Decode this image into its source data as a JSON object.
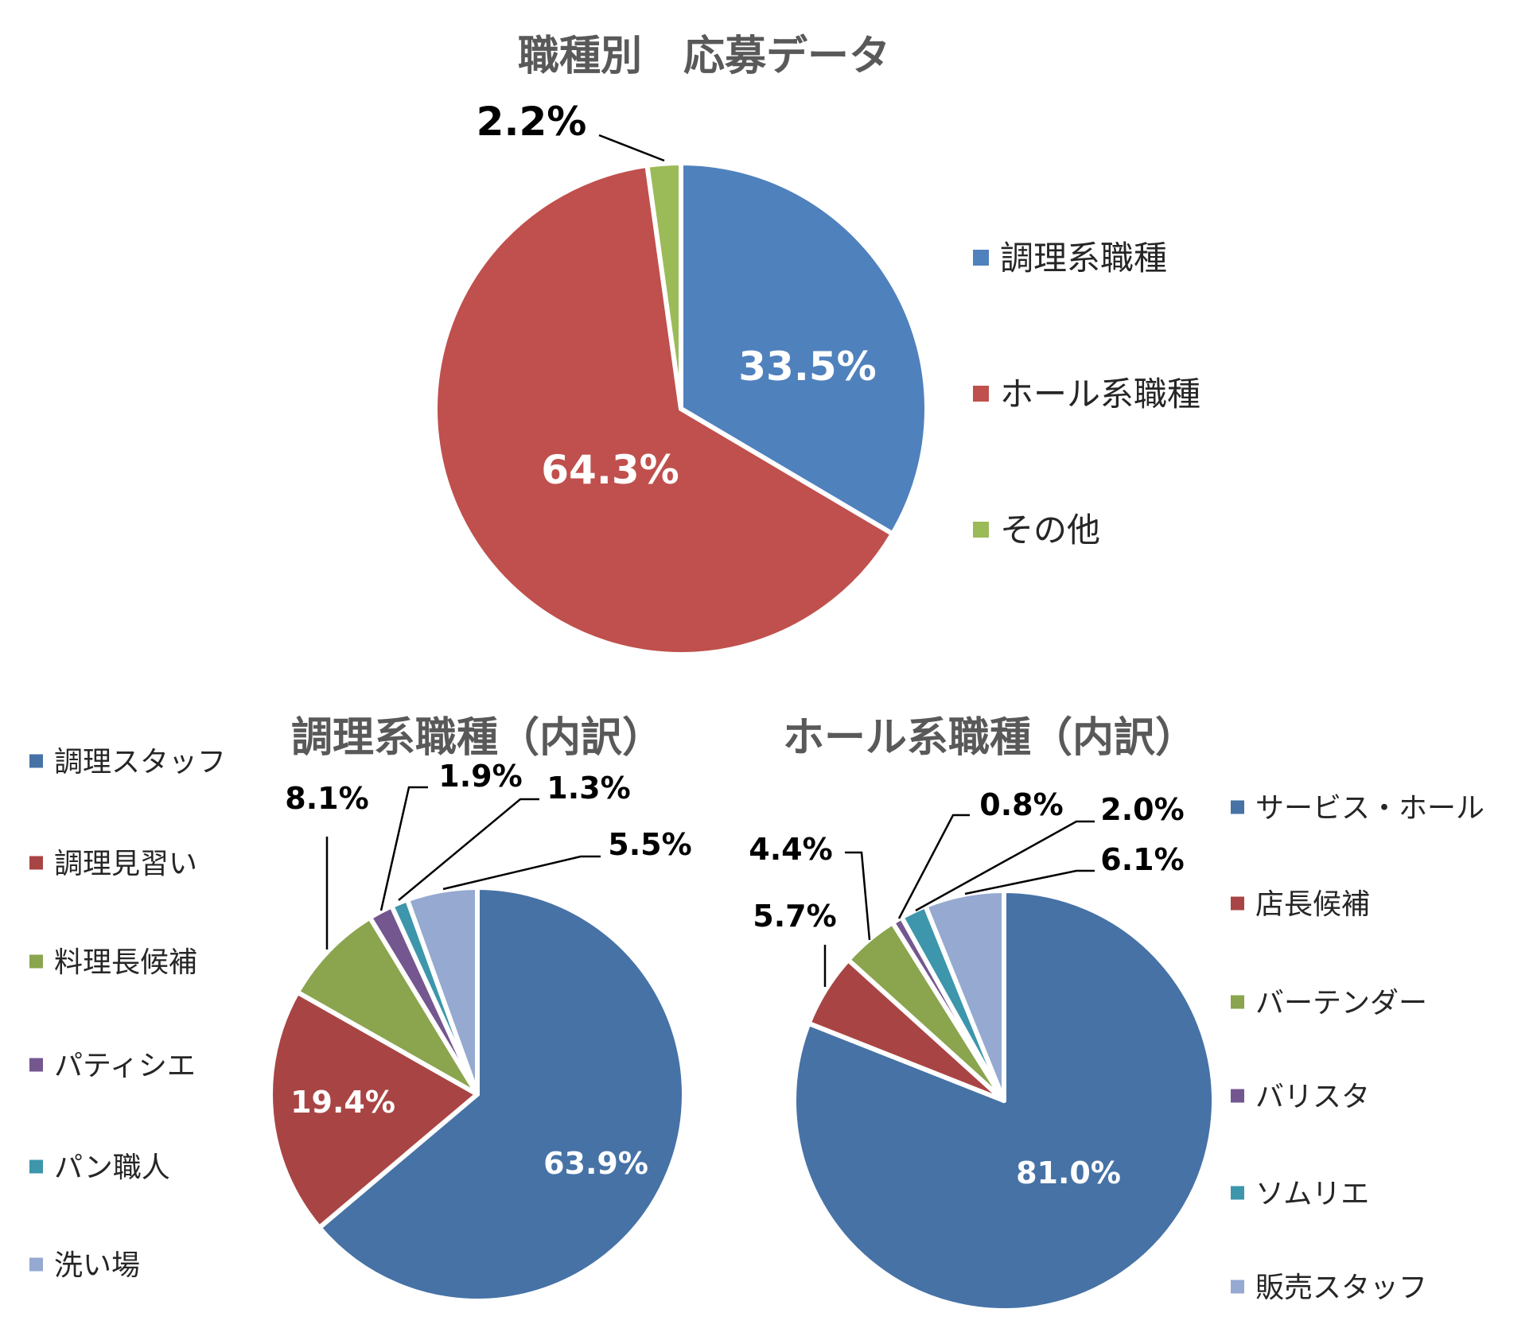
{
  "chart_data": [
    {
      "type": "pie",
      "title": "職種別　応募データ",
      "categories": [
        "調理系職種",
        "ホール系職種",
        "その他"
      ],
      "values": [
        33.5,
        64.3,
        2.2
      ],
      "labels": [
        "33.5%",
        "64.3%",
        "2.2%"
      ],
      "colors": [
        "#4F81BD",
        "#C0504D",
        "#9BBB59"
      ],
      "legend_position": "right"
    },
    {
      "type": "pie",
      "title": "調理系職種（内訳）",
      "categories": [
        "調理スタッフ",
        "調理見習い",
        "料理長候補",
        "パティシエ",
        "パン職人",
        "洗い場"
      ],
      "values": [
        63.9,
        19.4,
        8.1,
        1.9,
        1.3,
        5.5
      ],
      "labels": [
        "63.9%",
        "19.4%",
        "8.1%",
        "1.9%",
        "1.3%",
        "5.5%"
      ],
      "colors": [
        "#4672A6",
        "#A84544",
        "#8AA54E",
        "#74578F",
        "#3D96AB",
        "#95A9D1"
      ],
      "legend_position": "left"
    },
    {
      "type": "pie",
      "title": "ホール系職種（内訳）",
      "categories": [
        "サービス・ホール",
        "店長候補",
        "バーテンダー",
        "バリスタ",
        "ソムリエ",
        "販売スタッフ"
      ],
      "values": [
        81.0,
        5.7,
        4.4,
        0.8,
        2.0,
        6.1
      ],
      "labels": [
        "81.0%",
        "5.7%",
        "4.4%",
        "0.8%",
        "2.0%",
        "6.1%"
      ],
      "colors": [
        "#4672A6",
        "#A84544",
        "#8AA54E",
        "#74578F",
        "#3D96AB",
        "#95A9D1"
      ],
      "legend_position": "right"
    }
  ]
}
